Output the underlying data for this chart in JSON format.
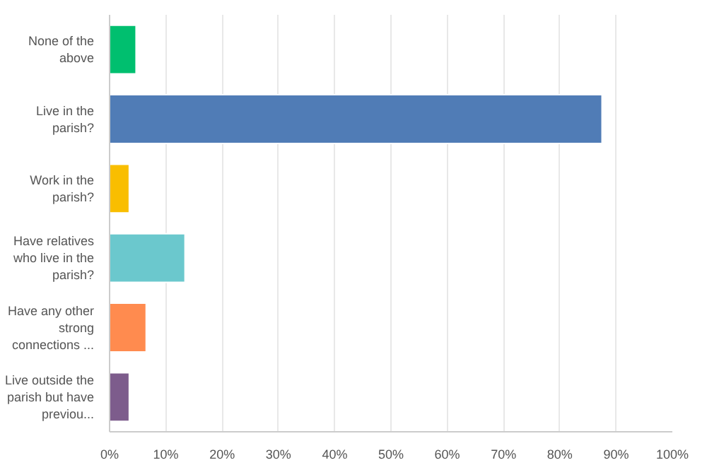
{
  "chart_data": {
    "type": "bar",
    "orientation": "horizontal",
    "categories": [
      "None of the above",
      "Live in the parish?",
      "Work in the parish?",
      "Have relatives who live in the parish?",
      "Have any other strong connections ...",
      "Live outside the parish but have previou..."
    ],
    "values": [
      4.7,
      87.5,
      3.5,
      13.4,
      6.5,
      3.5
    ],
    "colors": [
      "#00bf6f",
      "#507cb6",
      "#f9be00",
      "#6bc8cd",
      "#ff8b4f",
      "#7d5c8c"
    ],
    "xlim": [
      0,
      100
    ],
    "xticks": [
      {
        "value": 0,
        "label": "0%"
      },
      {
        "value": 10,
        "label": "10%"
      },
      {
        "value": 20,
        "label": "20%"
      },
      {
        "value": 30,
        "label": "30%"
      },
      {
        "value": 40,
        "label": "40%"
      },
      {
        "value": 50,
        "label": "50%"
      },
      {
        "value": 60,
        "label": "60%"
      },
      {
        "value": 70,
        "label": "70%"
      },
      {
        "value": 80,
        "label": "80%"
      },
      {
        "value": 90,
        "label": "90%"
      },
      {
        "value": 100,
        "label": "100%"
      }
    ],
    "grid": "x"
  }
}
